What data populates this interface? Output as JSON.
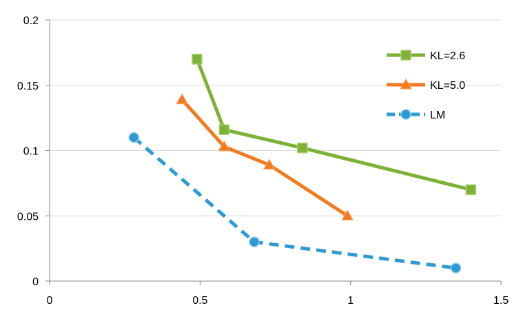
{
  "chart_data": {
    "type": "line",
    "title": "",
    "xlabel": "",
    "ylabel": "",
    "xlim": [
      0,
      1.5
    ],
    "ylim": [
      0,
      0.2
    ],
    "x_ticks": [
      0,
      0.5,
      1,
      1.5
    ],
    "x_tick_labels": [
      "0",
      "0.5",
      "1",
      "1.5"
    ],
    "y_ticks": [
      0,
      0.05,
      0.1,
      0.15,
      0.2
    ],
    "y_tick_labels": [
      "0",
      "0.05",
      "0.1",
      "0.15",
      "0.2"
    ],
    "grid": "horizontal",
    "legend_position": "top-right",
    "series": [
      {
        "name": "KL=2.6",
        "color": "#7cb236",
        "marker": "square",
        "line_style": "solid",
        "x": [
          0.49,
          0.58,
          0.84,
          1.4
        ],
        "y": [
          0.17,
          0.116,
          0.102,
          0.07
        ]
      },
      {
        "name": "KL=5.0",
        "color": "#f47a20",
        "marker": "triangle",
        "line_style": "solid",
        "x": [
          0.44,
          0.58,
          0.73,
          0.99
        ],
        "y": [
          0.139,
          0.103,
          0.089,
          0.05
        ]
      },
      {
        "name": "LM",
        "color": "#2e9ad3",
        "marker": "circle",
        "line_style": "dashed",
        "x": [
          0.28,
          0.68,
          1.35
        ],
        "y": [
          0.11,
          0.03,
          0.01
        ]
      }
    ]
  }
}
